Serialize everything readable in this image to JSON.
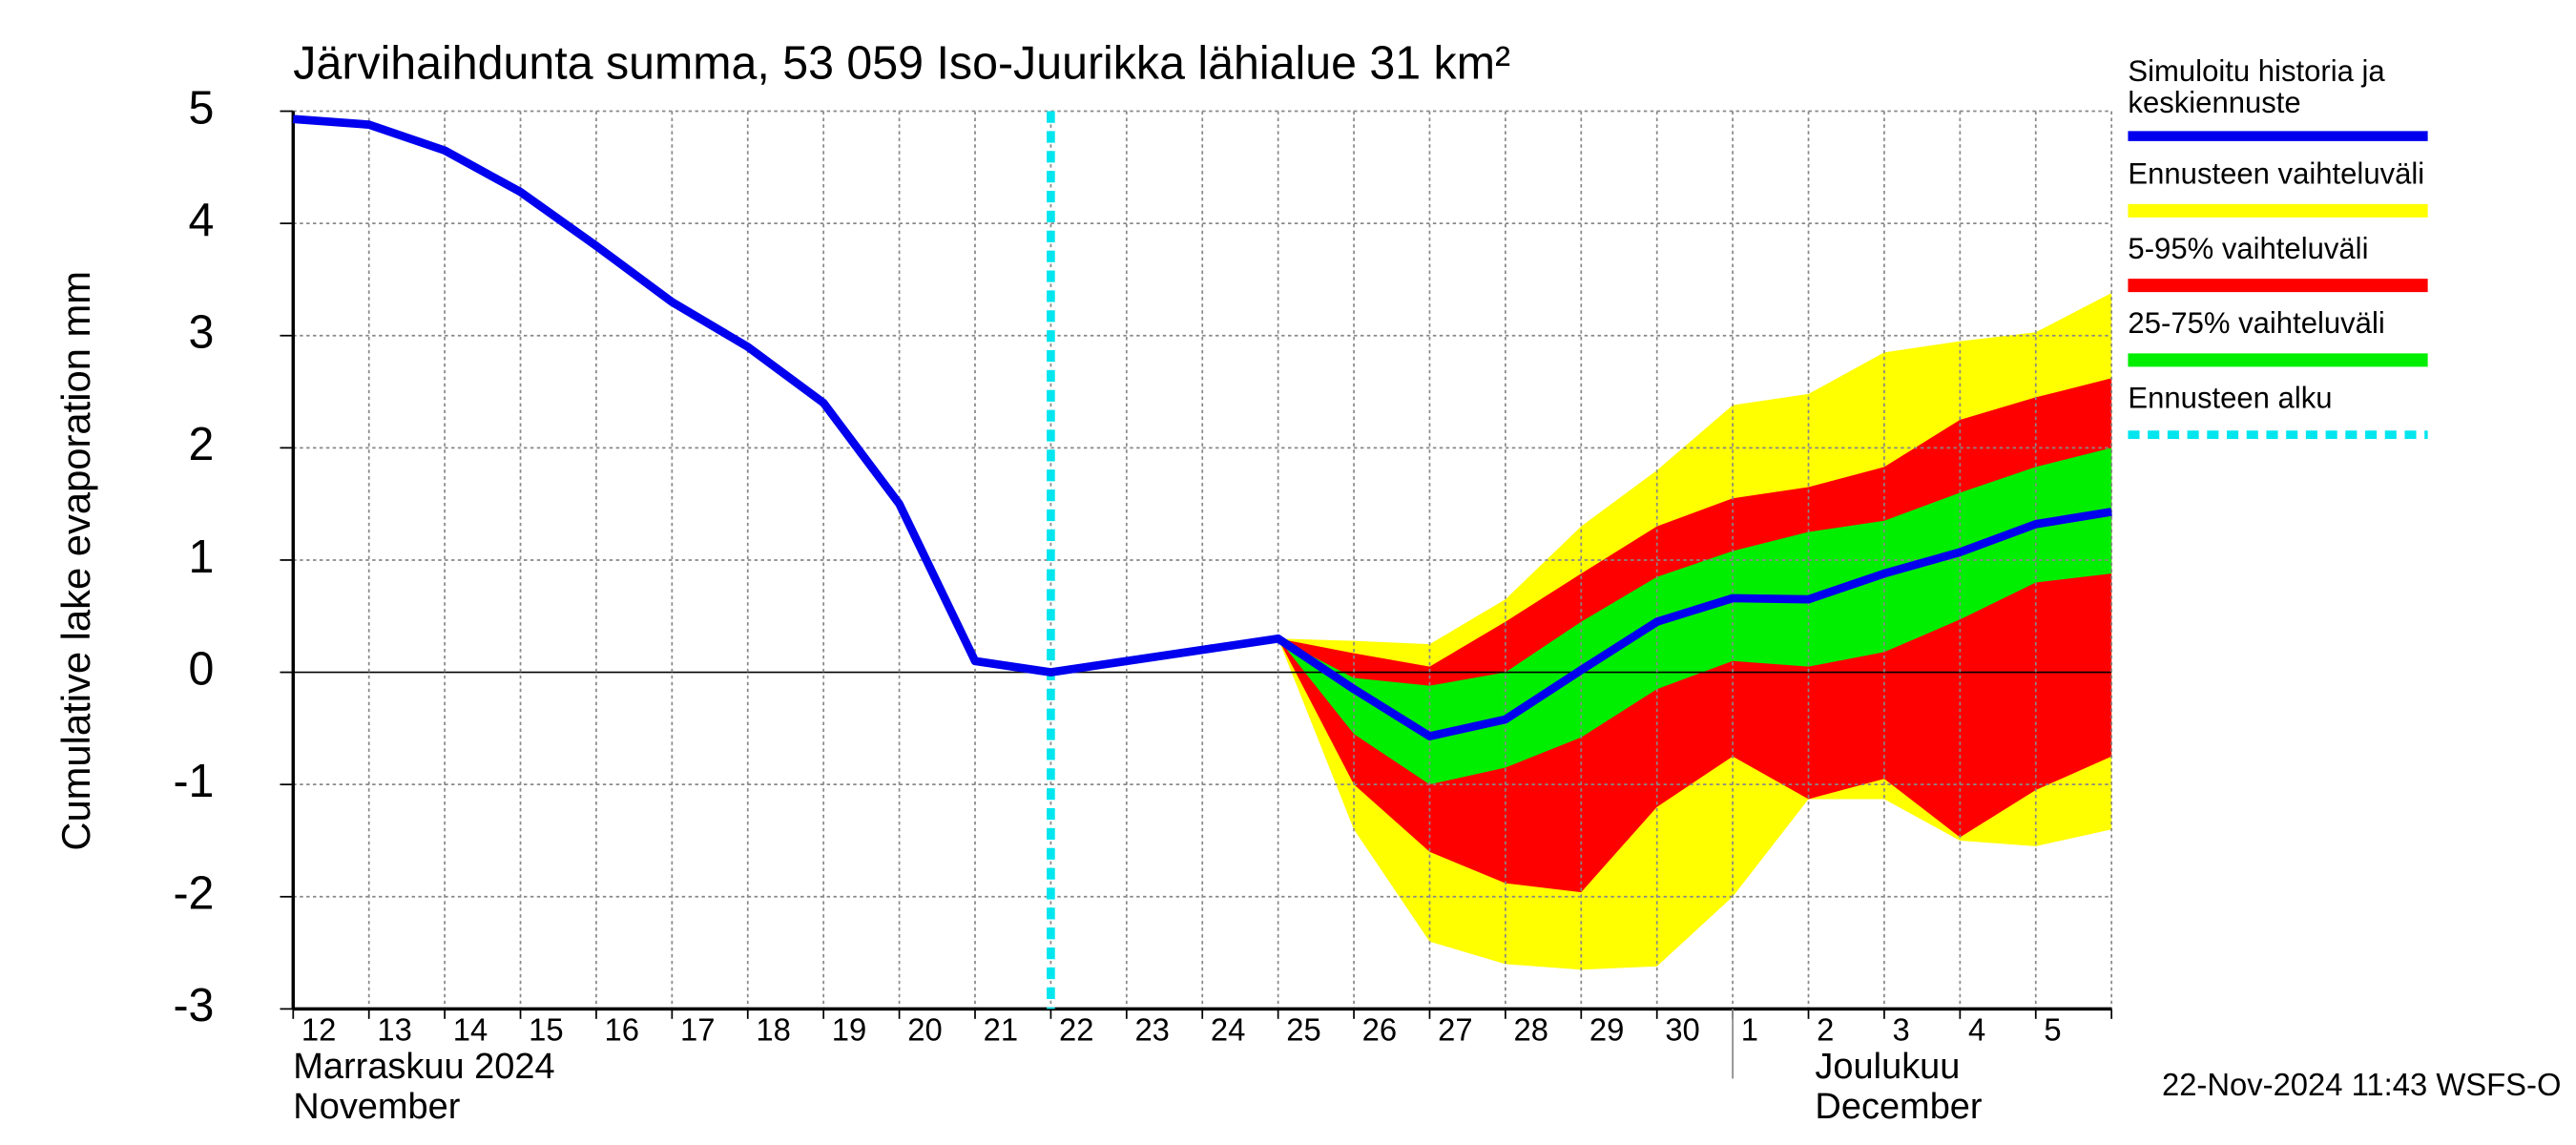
{
  "chart_data": {
    "type": "line",
    "title": "Järvihaihdunta summa, 53 059 Iso-Juurikka lähialue 31 km²",
    "y_label": "Cumulative lake evaporation   mm",
    "categories": [
      "12",
      "13",
      "14",
      "15",
      "16",
      "17",
      "18",
      "19",
      "20",
      "21",
      "22",
      "23",
      "24",
      "25",
      "26",
      "27",
      "28",
      "29",
      "30",
      "1",
      "2",
      "3",
      "4",
      "5",
      null
    ],
    "month_labels": [
      {
        "at": "12",
        "lines": [
          "Marraskuu 2024",
          "November"
        ]
      },
      {
        "at": "1",
        "lines": [
          "Joulukuu",
          "December"
        ]
      }
    ],
    "ylim": [
      -3,
      5
    ],
    "yticks": [
      -3,
      -2,
      -1,
      0,
      1,
      2,
      3,
      4,
      5
    ],
    "grid": true,
    "bands": [
      {
        "name": "Ennusteen vaihteluväli",
        "color": "#ffff00",
        "upper": [
          null,
          null,
          null,
          null,
          null,
          null,
          null,
          null,
          null,
          null,
          null,
          null,
          null,
          0.3,
          0.28,
          0.25,
          0.65,
          1.3,
          1.8,
          2.38,
          2.48,
          2.85,
          2.95,
          3.03,
          3.38
        ],
        "lower": [
          null,
          null,
          null,
          null,
          null,
          null,
          null,
          null,
          null,
          null,
          null,
          null,
          null,
          0.3,
          -1.4,
          -2.4,
          -2.6,
          -2.65,
          -2.62,
          -2.0,
          -1.13,
          -1.13,
          -1.5,
          -1.55,
          -1.4
        ]
      },
      {
        "name": "5-95% vaihteluväli",
        "color": "#ff0000",
        "upper": [
          null,
          null,
          null,
          null,
          null,
          null,
          null,
          null,
          null,
          null,
          null,
          null,
          null,
          0.3,
          0.17,
          0.05,
          0.45,
          0.88,
          1.3,
          1.55,
          1.65,
          1.83,
          2.25,
          2.45,
          2.62
        ],
        "lower": [
          null,
          null,
          null,
          null,
          null,
          null,
          null,
          null,
          null,
          null,
          null,
          null,
          null,
          0.3,
          -1.0,
          -1.6,
          -1.88,
          -1.96,
          -1.2,
          -0.75,
          -1.13,
          -0.95,
          -1.47,
          -1.05,
          -0.75
        ]
      },
      {
        "name": "25-75% vaihteluväli",
        "color": "#00ee00",
        "upper": [
          null,
          null,
          null,
          null,
          null,
          null,
          null,
          null,
          null,
          null,
          null,
          null,
          null,
          0.3,
          -0.05,
          -0.12,
          0.0,
          0.45,
          0.85,
          1.08,
          1.25,
          1.35,
          1.6,
          1.83,
          2.0
        ],
        "lower": [
          null,
          null,
          null,
          null,
          null,
          null,
          null,
          null,
          null,
          null,
          null,
          null,
          null,
          0.3,
          -0.55,
          -1.0,
          -0.85,
          -0.58,
          -0.15,
          0.1,
          0.05,
          0.18,
          0.47,
          0.8,
          0.88
        ]
      }
    ],
    "series": [
      {
        "name": [
          "Simuloitu historia ja",
          "keskiennuste"
        ],
        "color": "#0000ee",
        "values": [
          4.93,
          4.88,
          4.65,
          4.28,
          3.8,
          3.3,
          2.9,
          2.4,
          1.5,
          0.1,
          0.0,
          0.1,
          0.2,
          0.3,
          -0.15,
          -0.57,
          -0.42,
          0.02,
          0.45,
          0.66,
          0.65,
          0.88,
          1.07,
          1.32,
          1.43
        ]
      }
    ],
    "forecast_start": {
      "name": "Ennusteen alku",
      "color": "#00e5ee",
      "at": "22"
    },
    "footer": "22-Nov-2024 11:43 WSFS-O"
  }
}
